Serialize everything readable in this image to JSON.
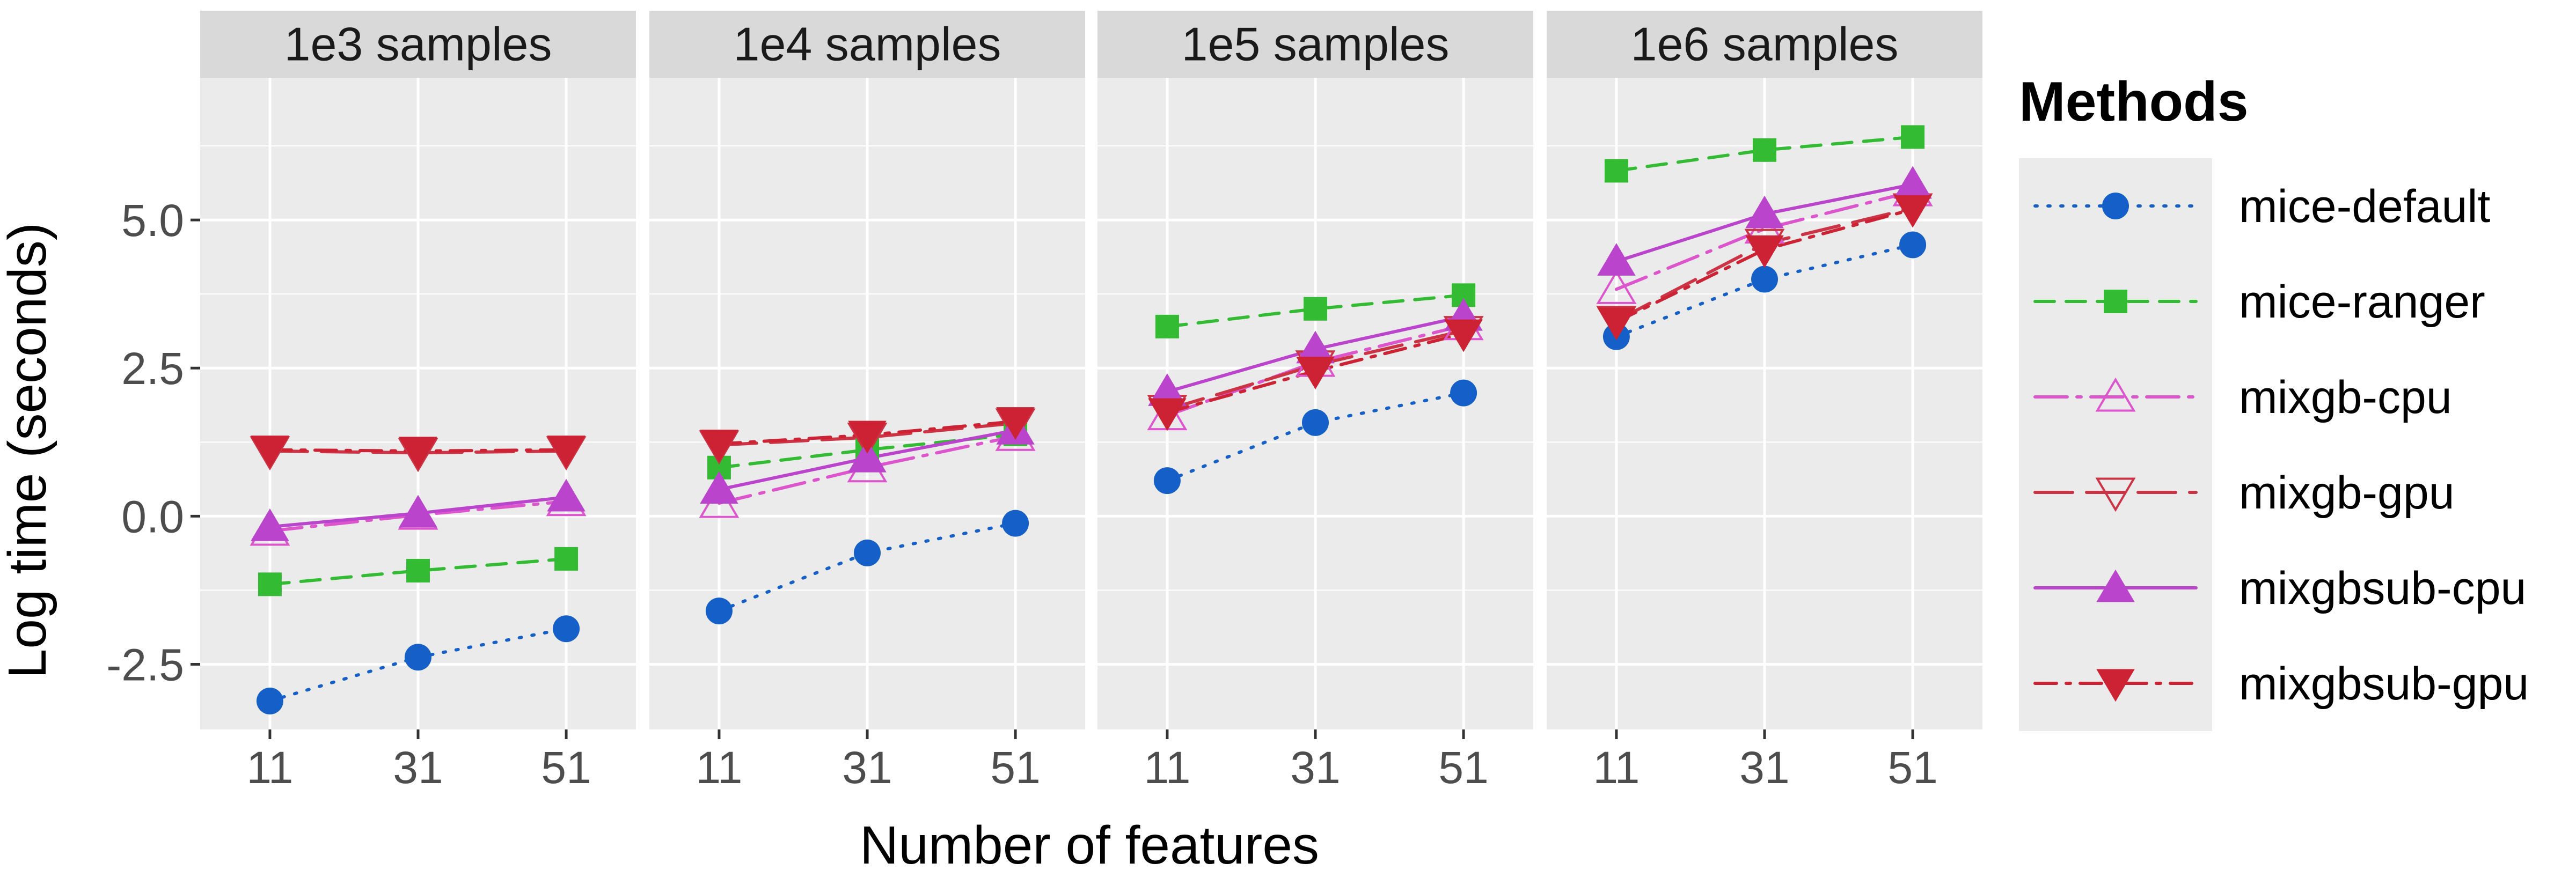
{
  "chart_data": {
    "type": "line",
    "facet_variable": "samples",
    "facets": [
      "1e3 samples",
      "1e4 samples",
      "1e5 samples",
      "1e6 samples"
    ],
    "x": [
      "11",
      "31",
      "51"
    ],
    "xlabel": "Number of features",
    "ylabel": "Log time (seconds)",
    "ylim": [
      -3.6,
      7.4
    ],
    "yticks": [
      -2.5,
      0.0,
      2.5,
      5.0
    ],
    "ytick_labels": [
      "-2.5",
      "0.0",
      "2.5",
      "5.0"
    ],
    "grid": true,
    "legend": {
      "title": "Methods",
      "position": "right"
    },
    "series": [
      {
        "name": "mice-default",
        "color": "#1560c8",
        "line": "dotted",
        "marker": "circle-filled",
        "values": [
          [
            -3.12,
            -2.38,
            -1.9
          ],
          [
            -1.6,
            -0.62,
            -0.12
          ],
          [
            0.6,
            1.58,
            2.08
          ],
          [
            3.03,
            4.0,
            4.58
          ]
        ]
      },
      {
        "name": "mice-ranger",
        "color": "#33bb33",
        "line": "dashed",
        "marker": "square-filled",
        "values": [
          [
            -1.15,
            -0.92,
            -0.72
          ],
          [
            0.82,
            1.12,
            1.38
          ],
          [
            3.2,
            3.5,
            3.73
          ],
          [
            5.83,
            6.18,
            6.4
          ]
        ]
      },
      {
        "name": "mixgb-cpu",
        "color": "#dd55cc",
        "line": "longdash-dot",
        "marker": "triangle-open",
        "values": [
          [
            -0.25,
            0.02,
            0.25
          ],
          [
            0.22,
            0.82,
            1.35
          ],
          [
            1.7,
            2.6,
            3.22
          ],
          [
            3.83,
            4.85,
            5.48
          ]
        ]
      },
      {
        "name": "mixgb-gpu",
        "color": "#cc3344",
        "line": "longdash",
        "marker": "triangle-down-open",
        "values": [
          [
            1.1,
            1.07,
            1.1
          ],
          [
            1.2,
            1.33,
            1.57
          ],
          [
            1.8,
            2.55,
            3.13
          ],
          [
            3.3,
            4.6,
            5.2
          ]
        ]
      },
      {
        "name": "mixgbsub-cpu",
        "color": "#bb44cc",
        "line": "solid",
        "marker": "triangle-filled",
        "values": [
          [
            -0.18,
            0.05,
            0.32
          ],
          [
            0.45,
            0.98,
            1.45
          ],
          [
            2.1,
            2.82,
            3.37
          ],
          [
            4.3,
            5.1,
            5.6
          ]
        ]
      },
      {
        "name": "mixgbsub-gpu",
        "color": "#cc2233",
        "line": "dashdot",
        "marker": "triangle-down-filled",
        "values": [
          [
            1.12,
            1.1,
            1.12
          ],
          [
            1.22,
            1.37,
            1.6
          ],
          [
            1.75,
            2.45,
            3.08
          ],
          [
            3.28,
            4.5,
            5.18
          ]
        ]
      }
    ]
  }
}
